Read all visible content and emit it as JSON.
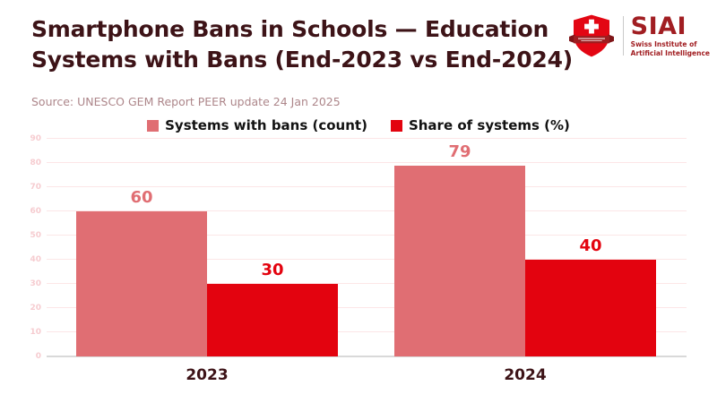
{
  "header": {
    "title_lines": [
      "Smartphone Bans in Schools — Education",
      "Systems with Bans (End-2023 vs End-2024)"
    ],
    "source": "Source: UNESCO GEM Report PEER update 24 Jan 2025"
  },
  "logo": {
    "acronym": "SIAI",
    "tagline_lines": [
      "Swiss Institute of",
      "Artificial Intelligence"
    ],
    "shield_icon": "swiss-shield-icon",
    "brand_color": "#a11e22"
  },
  "chart_data": {
    "type": "bar",
    "categories": [
      "2023",
      "2024"
    ],
    "series": [
      {
        "name": "Systems with bans (count)",
        "values": [
          60,
          79
        ],
        "color": "#e06e73"
      },
      {
        "name": "Share of systems (%)",
        "values": [
          30,
          40
        ],
        "color": "#e3030f"
      }
    ],
    "title": "Smartphone Bans in Schools — Education Systems with Bans (End-2023 vs End-2024)",
    "xlabel": "",
    "ylabel": "",
    "ylim": [
      0,
      90
    ],
    "yticks": [
      0,
      10,
      20,
      30,
      40,
      50,
      60,
      70,
      80,
      90
    ],
    "grid": true,
    "legend_position": "top",
    "value_labels": true
  },
  "colors": {
    "title": "#3d1317",
    "source": "#ad868a",
    "gridline": "#fce6e7",
    "axis_line": "#d9d9d9",
    "ytick": "#f6ccd0"
  }
}
